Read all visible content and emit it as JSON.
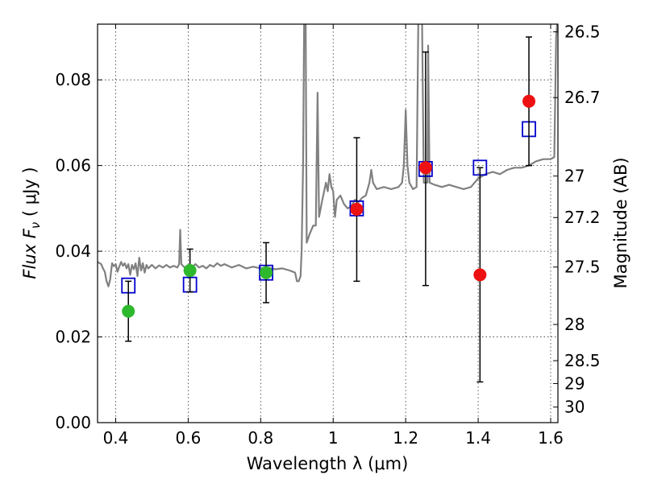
{
  "chart_data": {
    "type": "scatter",
    "xlabel": "Wavelength  λ (μm)",
    "ylabel": "Flux  F",
    "ylabel_sub": "ν",
    "ylabel_unit": "  ( μJy )",
    "y2label": "Magnitude (AB)",
    "xlim": [
      0.35,
      1.62
    ],
    "ylim": [
      0.0,
      0.093
    ],
    "grid": true,
    "x_ticks": [
      {
        "value": 0.4,
        "label": "0.4"
      },
      {
        "value": 0.6,
        "label": "0.6"
      },
      {
        "value": 0.8,
        "label": "0.8"
      },
      {
        "value": 1.0,
        "label": "1"
      },
      {
        "value": 1.2,
        "label": "1.2"
      },
      {
        "value": 1.4,
        "label": "1.4"
      },
      {
        "value": 1.6,
        "label": "1.6"
      }
    ],
    "y_ticks": [
      {
        "value": 0.0,
        "label": "0.00"
      },
      {
        "value": 0.02,
        "label": "0.02"
      },
      {
        "value": 0.04,
        "label": "0.04"
      },
      {
        "value": 0.06,
        "label": "0.06"
      },
      {
        "value": 0.08,
        "label": "0.08"
      }
    ],
    "y2_ticks": [
      {
        "value": 26.5,
        "label": "26.5"
      },
      {
        "value": 26.7,
        "label": "26.7"
      },
      {
        "value": 27.0,
        "label": "27"
      },
      {
        "value": 27.2,
        "label": "27.2"
      },
      {
        "value": 27.5,
        "label": "27.5"
      },
      {
        "value": 28.0,
        "label": "28"
      },
      {
        "value": 28.5,
        "label": "28.5"
      },
      {
        "value": 29.0,
        "label": "29"
      },
      {
        "value": 30.0,
        "label": "30"
      }
    ],
    "series": [
      {
        "marker": "line",
        "color": "#808080",
        "points": [
          [
            0.35,
            0.0375
          ],
          [
            0.36,
            0.037
          ],
          [
            0.365,
            0.036
          ],
          [
            0.37,
            0.0352
          ],
          [
            0.375,
            0.033
          ],
          [
            0.38,
            0.0318
          ],
          [
            0.385,
            0.0335
          ],
          [
            0.39,
            0.0372
          ],
          [
            0.395,
            0.0365
          ],
          [
            0.4,
            0.037
          ],
          [
            0.405,
            0.0352
          ],
          [
            0.41,
            0.0364
          ],
          [
            0.415,
            0.0375
          ],
          [
            0.42,
            0.0366
          ],
          [
            0.425,
            0.0372
          ],
          [
            0.43,
            0.036
          ],
          [
            0.435,
            0.037
          ],
          [
            0.44,
            0.0345
          ],
          [
            0.445,
            0.0368
          ],
          [
            0.45,
            0.0358
          ],
          [
            0.455,
            0.0372
          ],
          [
            0.46,
            0.0342
          ],
          [
            0.465,
            0.0385
          ],
          [
            0.47,
            0.0355
          ],
          [
            0.475,
            0.0372
          ],
          [
            0.48,
            0.035
          ],
          [
            0.485,
            0.0368
          ],
          [
            0.49,
            0.036
          ],
          [
            0.5,
            0.0368
          ],
          [
            0.51,
            0.036
          ],
          [
            0.52,
            0.0367
          ],
          [
            0.53,
            0.0362
          ],
          [
            0.54,
            0.0368
          ],
          [
            0.55,
            0.0362
          ],
          [
            0.56,
            0.0366
          ],
          [
            0.57,
            0.0362
          ],
          [
            0.575,
            0.037
          ],
          [
            0.578,
            0.045
          ],
          [
            0.581,
            0.037
          ],
          [
            0.59,
            0.0362
          ],
          [
            0.6,
            0.0368
          ],
          [
            0.61,
            0.0362
          ],
          [
            0.62,
            0.037
          ],
          [
            0.63,
            0.0362
          ],
          [
            0.64,
            0.0366
          ],
          [
            0.65,
            0.036
          ],
          [
            0.66,
            0.0368
          ],
          [
            0.67,
            0.0364
          ],
          [
            0.68,
            0.0372
          ],
          [
            0.69,
            0.0366
          ],
          [
            0.7,
            0.037
          ],
          [
            0.72,
            0.0362
          ],
          [
            0.74,
            0.0368
          ],
          [
            0.76,
            0.036
          ],
          [
            0.78,
            0.0364
          ],
          [
            0.8,
            0.036
          ],
          [
            0.82,
            0.0362
          ],
          [
            0.84,
            0.0358
          ],
          [
            0.86,
            0.036
          ],
          [
            0.88,
            0.0355
          ],
          [
            0.895,
            0.035
          ],
          [
            0.9,
            0.033
          ],
          [
            0.905,
            0.033
          ],
          [
            0.91,
            0.0342
          ],
          [
            0.913,
            0.04
          ],
          [
            0.917,
            0.06
          ],
          [
            0.92,
            0.095
          ],
          [
            0.924,
            0.095
          ],
          [
            0.927,
            0.042
          ],
          [
            0.935,
            0.044
          ],
          [
            0.945,
            0.046
          ],
          [
            0.952,
            0.046
          ],
          [
            0.957,
            0.077
          ],
          [
            0.961,
            0.048
          ],
          [
            0.97,
            0.052
          ],
          [
            0.98,
            0.056
          ],
          [
            0.985,
            0.054
          ],
          [
            0.99,
            0.058
          ],
          [
            0.995,
            0.055
          ],
          [
            1.0,
            0.054
          ],
          [
            1.005,
            0.048
          ],
          [
            1.01,
            0.052
          ],
          [
            1.02,
            0.053
          ],
          [
            1.03,
            0.051
          ],
          [
            1.04,
            0.05
          ],
          [
            1.05,
            0.0505
          ],
          [
            1.06,
            0.052
          ],
          [
            1.07,
            0.0515
          ],
          [
            1.08,
            0.0525
          ],
          [
            1.09,
            0.053
          ],
          [
            1.1,
            0.056
          ],
          [
            1.105,
            0.059
          ],
          [
            1.11,
            0.056
          ],
          [
            1.12,
            0.0545
          ],
          [
            1.14,
            0.055
          ],
          [
            1.16,
            0.0545
          ],
          [
            1.18,
            0.055
          ],
          [
            1.19,
            0.056
          ],
          [
            1.195,
            0.06
          ],
          [
            1.2,
            0.073
          ],
          [
            1.205,
            0.06
          ],
          [
            1.21,
            0.056
          ],
          [
            1.22,
            0.0545
          ],
          [
            1.23,
            0.055
          ],
          [
            1.235,
            0.095
          ],
          [
            1.245,
            0.095
          ],
          [
            1.25,
            0.056
          ],
          [
            1.26,
            0.056
          ],
          [
            1.262,
            0.088
          ],
          [
            1.266,
            0.056
          ],
          [
            1.28,
            0.0555
          ],
          [
            1.3,
            0.055
          ],
          [
            1.32,
            0.0555
          ],
          [
            1.34,
            0.055
          ],
          [
            1.36,
            0.0545
          ],
          [
            1.38,
            0.055
          ],
          [
            1.39,
            0.056
          ],
          [
            1.4,
            0.057
          ],
          [
            1.41,
            0.0575
          ],
          [
            1.42,
            0.058
          ],
          [
            1.44,
            0.0585
          ],
          [
            1.46,
            0.058
          ],
          [
            1.48,
            0.059
          ],
          [
            1.5,
            0.0595
          ],
          [
            1.52,
            0.0595
          ],
          [
            1.54,
            0.06
          ],
          [
            1.56,
            0.061
          ],
          [
            1.58,
            0.0615
          ],
          [
            1.6,
            0.0615
          ],
          [
            1.61,
            0.062
          ],
          [
            1.615,
            0.09
          ],
          [
            1.62,
            0.095
          ]
        ]
      },
      {
        "marker": "open-square",
        "color": "#0000cc",
        "points": [
          [
            0.435,
            0.032
          ],
          [
            0.605,
            0.0322
          ],
          [
            0.815,
            0.035
          ],
          [
            1.065,
            0.05
          ],
          [
            1.255,
            0.0592
          ],
          [
            1.405,
            0.0595
          ],
          [
            1.54,
            0.0685
          ]
        ]
      },
      {
        "marker": "circle",
        "color": "#2eb82e",
        "points": [
          {
            "x": 0.435,
            "y": 0.026,
            "err": [
              0.019,
              0.033
            ]
          },
          {
            "x": 0.605,
            "y": 0.0355,
            "err": [
              0.0305,
              0.0405
            ]
          },
          {
            "x": 0.815,
            "y": 0.035,
            "err": [
              0.028,
              0.042
            ]
          }
        ]
      },
      {
        "marker": "circle",
        "color": "#ee1111",
        "points": [
          {
            "x": 1.065,
            "y": 0.0498,
            "err": [
              0.033,
              0.0665
            ]
          },
          {
            "x": 1.255,
            "y": 0.0595,
            "err": [
              0.032,
              0.0865
            ]
          },
          {
            "x": 1.405,
            "y": 0.0345,
            "err": [
              0.0095,
              0.0595
            ]
          },
          {
            "x": 1.54,
            "y": 0.075,
            "err": [
              0.06,
              0.09
            ]
          }
        ]
      }
    ]
  }
}
